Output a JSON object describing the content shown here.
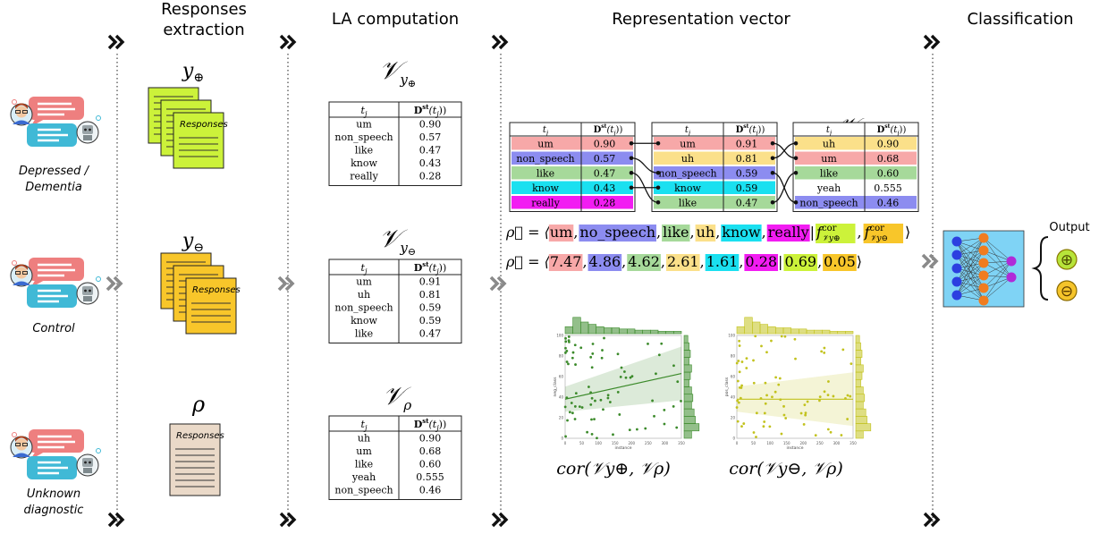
{
  "stage_titles": {
    "extraction_line1": "Responses",
    "extraction_line2": "extraction",
    "la": "LA computation",
    "representation": "Representation vector",
    "classification": "Classification"
  },
  "groups": {
    "depressed_line1": "Depressed /",
    "depressed_line2": "Dementia",
    "control": "Control",
    "unknown_line1": "Unknown",
    "unknown_line2": "diagnostic"
  },
  "responses_label": "Responses",
  "symbols": {
    "y_base": "y",
    "oplus": "⊕",
    "ominus": "⊖",
    "rho": "ρ",
    "V": "𝒱",
    "rho_vec": "ρ⃗"
  },
  "table_headers": {
    "tj": "t",
    "tj_sub": "j",
    "dst": "D",
    "dst_sup": "st",
    "dst_arg": "(t",
    "dst_arg_end": "))"
  },
  "la_tables": {
    "plus": [
      {
        "term": "um",
        "value": "0.90"
      },
      {
        "term": "non_speech",
        "value": "0.57"
      },
      {
        "term": "like",
        "value": "0.47"
      },
      {
        "term": "know",
        "value": "0.43"
      },
      {
        "term": "really",
        "value": "0.28"
      }
    ],
    "minus": [
      {
        "term": "um",
        "value": "0.91"
      },
      {
        "term": "uh",
        "value": "0.81"
      },
      {
        "term": "non_speech",
        "value": "0.59"
      },
      {
        "term": "know",
        "value": "0.59"
      },
      {
        "term": "like",
        "value": "0.47"
      }
    ],
    "rho": [
      {
        "term": "uh",
        "value": "0.90"
      },
      {
        "term": "um",
        "value": "0.68"
      },
      {
        "term": "like",
        "value": "0.60"
      },
      {
        "term": "yeah",
        "value": "0.555"
      },
      {
        "term": "non_speech",
        "value": "0.46"
      }
    ]
  },
  "vector_terms": [
    {
      "text": "um",
      "color": "#f7a8a8"
    },
    {
      "text": "no_speech",
      "color": "#8c8cf0"
    },
    {
      "text": "like",
      "color": "#a6d99a"
    },
    {
      "text": "uh",
      "color": "#fbe08a"
    },
    {
      "text": "know",
      "color": "#1ae0f0"
    },
    {
      "text": "really",
      "color": "#f21cf2"
    }
  ],
  "vector_values": [
    {
      "text": "7.47",
      "color": "#f7a8a8"
    },
    {
      "text": "4.86",
      "color": "#8c8cf0"
    },
    {
      "text": "4.62",
      "color": "#a6d99a"
    },
    {
      "text": "2.61",
      "color": "#fbe08a"
    },
    {
      "text": "1.61",
      "color": "#1ae0f0"
    },
    {
      "text": "0.28",
      "color": "#f21cf2"
    },
    {
      "text": "0.69",
      "color": "#ccf23a"
    },
    {
      "text": "0.05",
      "color": "#f8c62a"
    }
  ],
  "feature_f": "f",
  "feature_sup": "cor",
  "term_colors": {
    "um": "#f7a8a8",
    "non_speech": "#8c8cf0",
    "like": "#a6d99a",
    "know": "#1ae0f0",
    "really": "#f21cf2",
    "uh": "#fbe08a",
    "yeah": "#ffffff"
  },
  "cor_labels": {
    "plus": "cor(𝒱y⊕, 𝒱ρ)",
    "minus": "cor(𝒱y⊖, 𝒱ρ)"
  },
  "plots": {
    "left": {
      "xlabel": "instance",
      "ylabel": "neg_class",
      "color": "#3b8a2a",
      "ticks_x": [
        "0",
        "50",
        "100",
        "150",
        "200",
        "250",
        "300",
        "350"
      ],
      "ticks_y": [
        "0",
        "20",
        "40",
        "60",
        "80",
        "100"
      ]
    },
    "right": {
      "xlabel": "instance",
      "ylabel": "pos_class",
      "color": "#c2c21e",
      "ticks_x": [
        "0",
        "50",
        "100",
        "150",
        "200",
        "250",
        "300",
        "350"
      ],
      "ticks_y": [
        "0",
        "20",
        "40",
        "60",
        "80",
        "100"
      ]
    }
  },
  "output_label": "Output",
  "colors": {
    "doc_plus": "#ccf23a",
    "doc_minus": "#f8c62a",
    "doc_rho": "#ead9c8",
    "nn_bg": "#7fd3f5",
    "nn_input": "#2c3fe0",
    "nn_hidden": "#f07c20",
    "nn_output": "#b02ad8",
    "out_plus": "#b7e43a",
    "out_minus": "#f5c42a"
  }
}
